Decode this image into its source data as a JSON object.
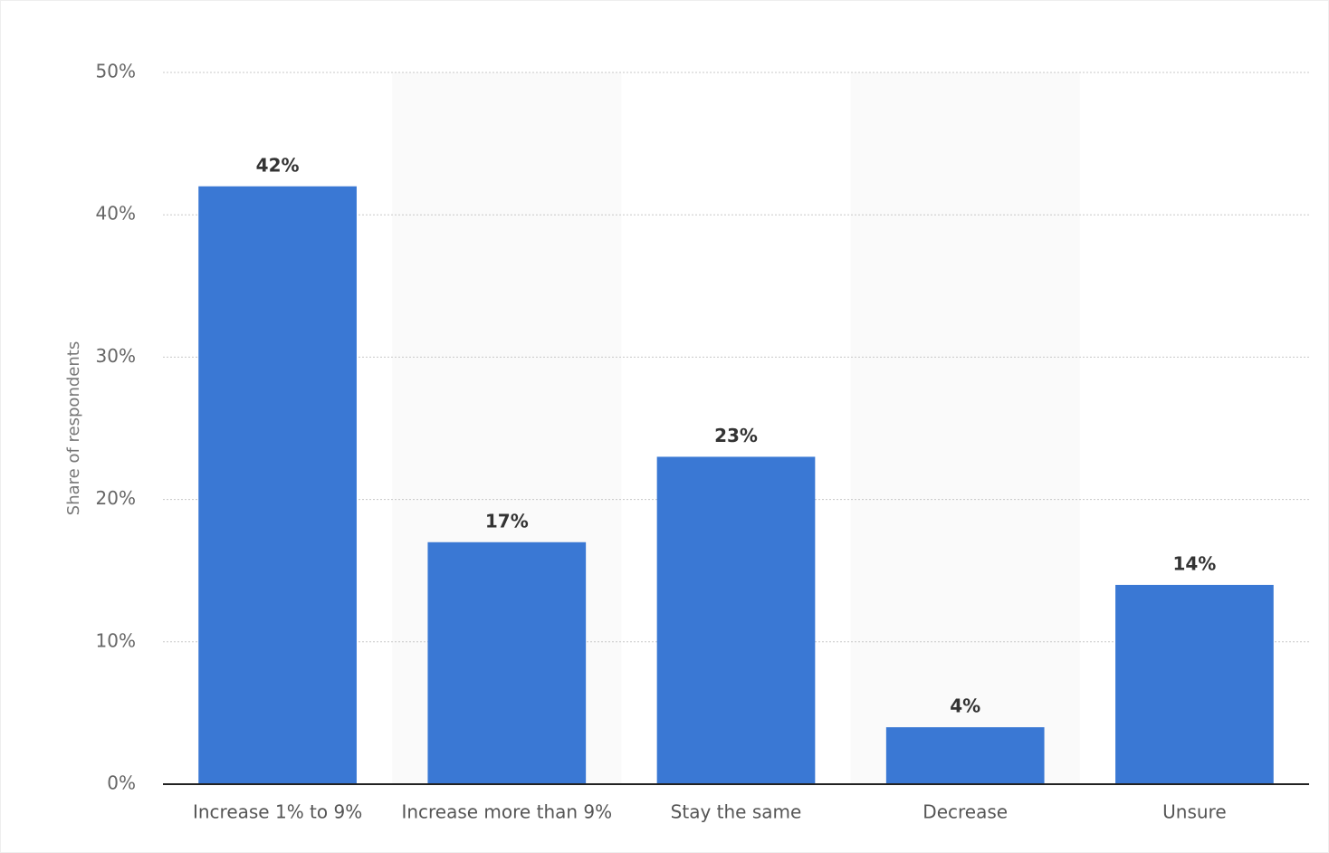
{
  "chart_data": {
    "type": "bar",
    "y_label": "Share of respondents",
    "categories": [
      "Increase 1% to 9%",
      "Increase more than 9%",
      "Stay the same",
      "Decrease",
      "Unsure"
    ],
    "values": [
      42,
      17,
      23,
      4,
      14
    ],
    "value_labels": [
      "42%",
      "17%",
      "23%",
      "4%",
      "14%"
    ],
    "color": "#3a78d4",
    "ylim": [
      0,
      50
    ],
    "yticks": [
      {
        "value": 0,
        "label": "0%"
      },
      {
        "value": 10,
        "label": "10%"
      },
      {
        "value": 20,
        "label": "20%"
      },
      {
        "value": 30,
        "label": "30%"
      },
      {
        "value": 40,
        "label": "40%"
      },
      {
        "value": 50,
        "label": "50%"
      }
    ],
    "grid": true
  }
}
